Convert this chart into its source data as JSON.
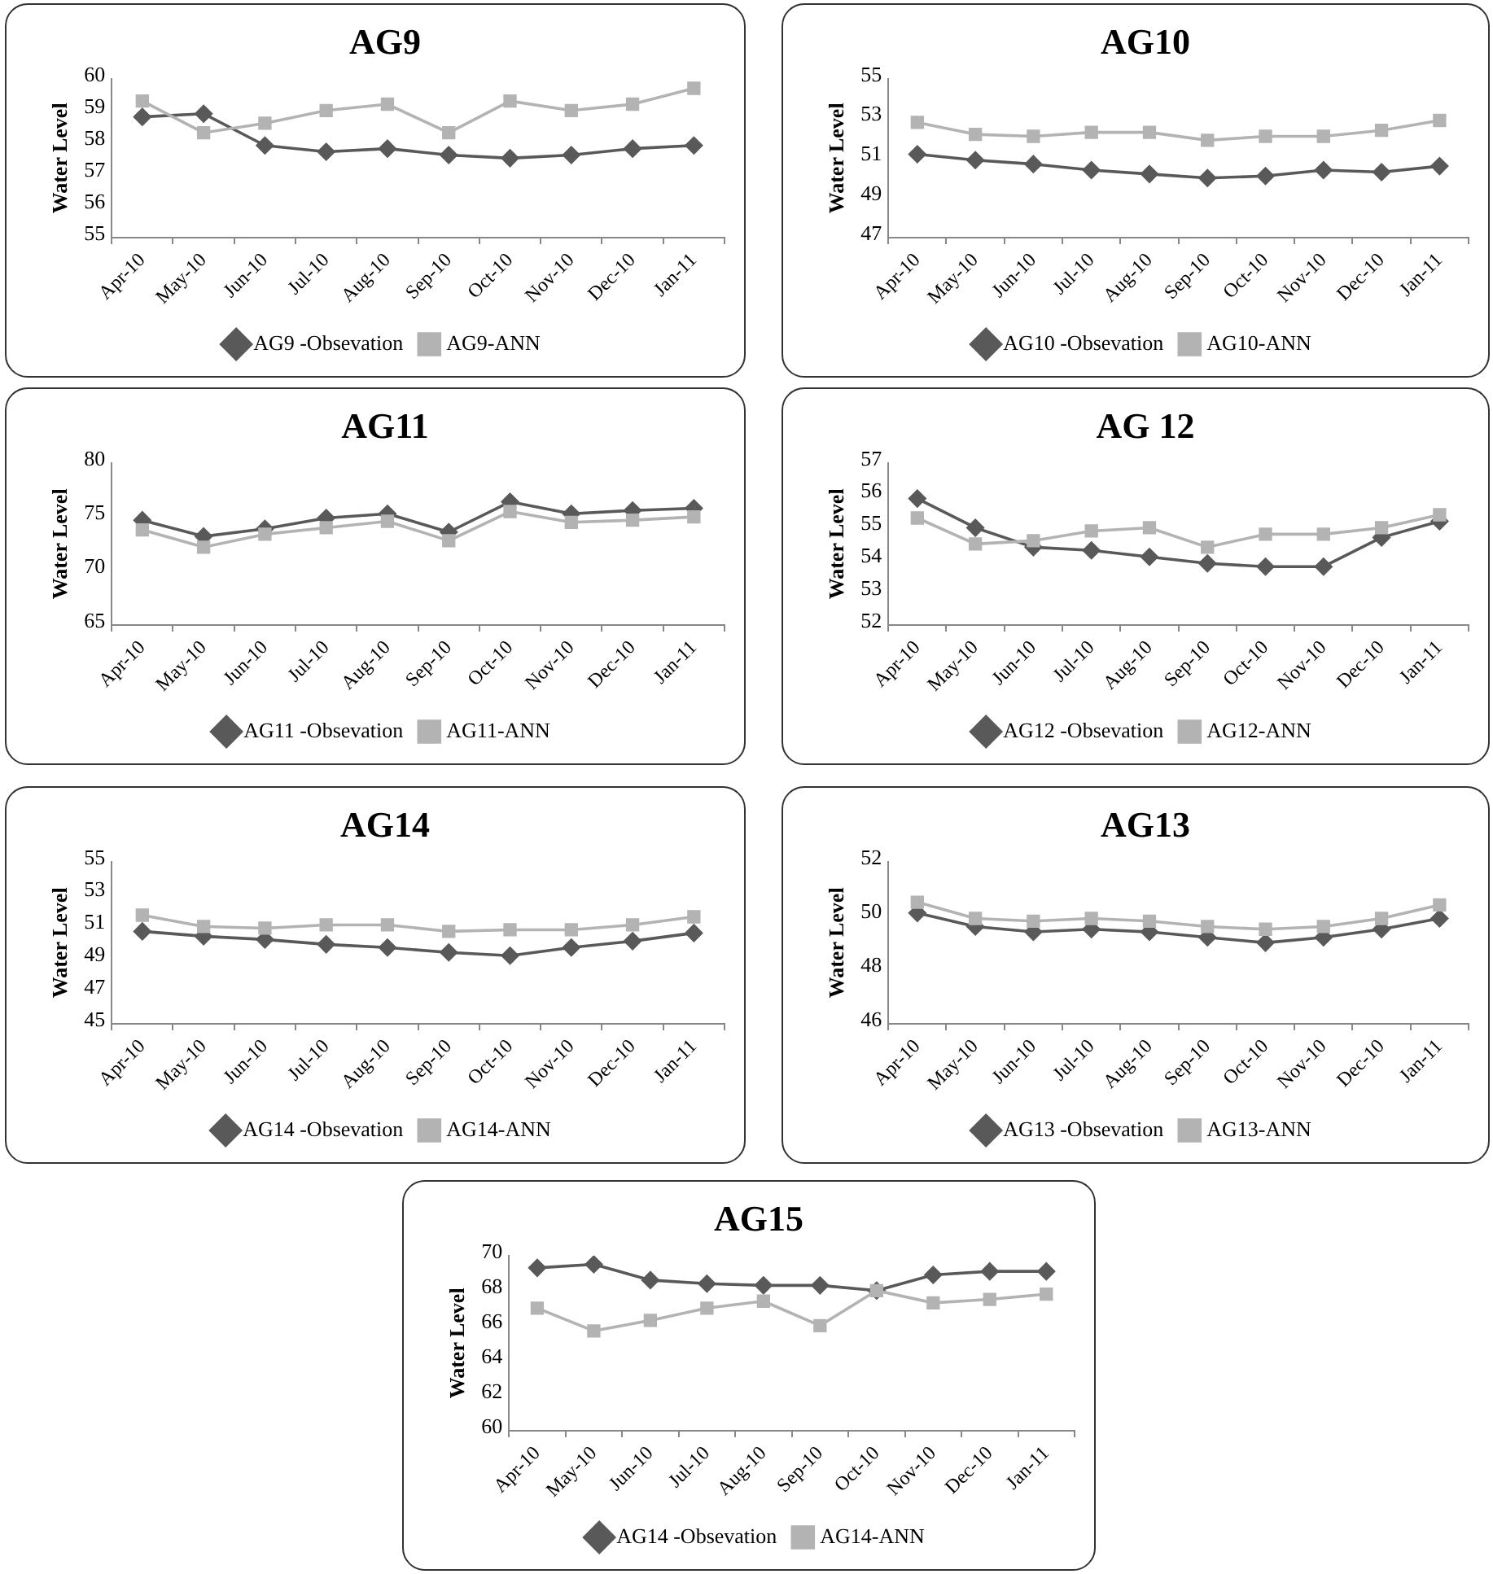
{
  "chart_data": [
    {
      "type": "line",
      "title": "AG9",
      "ylabel": "Water Level",
      "categories": [
        "Apr-10",
        "May-10",
        "Jun-10",
        "Jul-10",
        "Aug-10",
        "Sep-10",
        "Oct-10",
        "Nov-10",
        "Dec-10",
        "Jan-11"
      ],
      "ylim": [
        55,
        60
      ],
      "yticks": [
        55,
        56,
        57,
        58,
        59,
        60
      ],
      "grid": false,
      "legend": "bottom",
      "series": [
        {
          "name": "AG9 -Obsevation",
          "color": "#595959",
          "marker": "diamond",
          "values": [
            58.8,
            58.9,
            57.9,
            57.7,
            57.8,
            57.6,
            57.5,
            57.6,
            57.8,
            57.9
          ]
        },
        {
          "name": "AG9-ANN",
          "color": "#b3b3b3",
          "marker": "square",
          "values": [
            59.3,
            58.3,
            58.6,
            59.0,
            59.2,
            58.3,
            59.3,
            59.0,
            59.2,
            59.7
          ]
        }
      ]
    },
    {
      "type": "line",
      "title": "AG10",
      "ylabel": "Water Level",
      "categories": [
        "Apr-10",
        "May-10",
        "Jun-10",
        "Jul-10",
        "Aug-10",
        "Sep-10",
        "Oct-10",
        "Nov-10",
        "Dec-10",
        "Jan-11"
      ],
      "ylim": [
        47,
        55
      ],
      "yticks": [
        47,
        49,
        51,
        53,
        55
      ],
      "grid": false,
      "legend": "bottom",
      "series": [
        {
          "name": "AG10 -Obsevation",
          "color": "#595959",
          "marker": "diamond",
          "values": [
            51.2,
            50.9,
            50.7,
            50.4,
            50.2,
            50.0,
            50.1,
            50.4,
            50.3,
            50.6
          ]
        },
        {
          "name": "AG10-ANN",
          "color": "#b3b3b3",
          "marker": "square",
          "values": [
            52.8,
            52.2,
            52.1,
            52.3,
            52.3,
            51.9,
            52.1,
            52.1,
            52.4,
            52.9
          ]
        }
      ]
    },
    {
      "type": "line",
      "title": "AG11",
      "ylabel": "Water Level",
      "categories": [
        "Apr-10",
        "May-10",
        "Jun-10",
        "Jul-10",
        "Aug-10",
        "Sep-10",
        "Oct-10",
        "Nov-10",
        "Dec-10",
        "Jan-11"
      ],
      "ylim": [
        65,
        80
      ],
      "yticks": [
        65,
        70,
        75,
        80
      ],
      "grid": false,
      "legend": "bottom",
      "series": [
        {
          "name": "AG11 -Obsevation",
          "color": "#595959",
          "marker": "diamond",
          "values": [
            74.7,
            73.2,
            73.9,
            74.9,
            75.3,
            73.6,
            76.4,
            75.3,
            75.6,
            75.8
          ]
        },
        {
          "name": "AG11-ANN",
          "color": "#b3b3b3",
          "marker": "square",
          "values": [
            73.8,
            72.2,
            73.4,
            74.0,
            74.6,
            72.8,
            75.5,
            74.5,
            74.7,
            75.0
          ]
        }
      ]
    },
    {
      "type": "line",
      "title": "AG 12",
      "ylabel": "Water Level",
      "categories": [
        "Apr-10",
        "May-10",
        "Jun-10",
        "Jul-10",
        "Aug-10",
        "Sep-10",
        "Oct-10",
        "Nov-10",
        "Dec-10",
        "Jan-11"
      ],
      "ylim": [
        52,
        57
      ],
      "yticks": [
        52,
        53,
        54,
        55,
        56,
        57
      ],
      "grid": false,
      "legend": "bottom",
      "series": [
        {
          "name": "AG12 -Obsevation",
          "color": "#595959",
          "marker": "diamond",
          "values": [
            55.9,
            55.0,
            54.4,
            54.3,
            54.1,
            53.9,
            53.8,
            53.8,
            54.7,
            55.2
          ]
        },
        {
          "name": "AG12-ANN",
          "color": "#b3b3b3",
          "marker": "square",
          "values": [
            55.3,
            54.5,
            54.6,
            54.9,
            55.0,
            54.4,
            54.8,
            54.8,
            55.0,
            55.4
          ]
        }
      ]
    },
    {
      "type": "line",
      "title": "AG14",
      "ylabel": "Water Level",
      "categories": [
        "Apr-10",
        "May-10",
        "Jun-10",
        "Jul-10",
        "Aug-10",
        "Sep-10",
        "Oct-10",
        "Nov-10",
        "Dec-10",
        "Jan-11"
      ],
      "ylim": [
        45,
        55
      ],
      "yticks": [
        45,
        47,
        49,
        51,
        53,
        55
      ],
      "grid": false,
      "legend": "bottom",
      "series": [
        {
          "name": "AG14 -Obsevation",
          "color": "#595959",
          "marker": "diamond",
          "values": [
            50.7,
            50.4,
            50.2,
            49.9,
            49.7,
            49.4,
            49.2,
            49.7,
            50.1,
            50.6
          ]
        },
        {
          "name": "AG14-ANN",
          "color": "#b3b3b3",
          "marker": "square",
          "values": [
            51.7,
            51.0,
            50.9,
            51.1,
            51.1,
            50.7,
            50.8,
            50.8,
            51.1,
            51.6
          ]
        }
      ]
    },
    {
      "type": "line",
      "title": "AG13",
      "ylabel": "Water Level",
      "categories": [
        "Apr-10",
        "May-10",
        "Jun-10",
        "Jul-10",
        "Aug-10",
        "Sep-10",
        "Oct-10",
        "Nov-10",
        "Dec-10",
        "Jan-11"
      ],
      "ylim": [
        46,
        52
      ],
      "yticks": [
        46,
        48,
        50,
        52
      ],
      "grid": false,
      "legend": "bottom",
      "series": [
        {
          "name": "AG13 -Obsevation",
          "color": "#595959",
          "marker": "diamond",
          "values": [
            50.1,
            49.6,
            49.4,
            49.5,
            49.4,
            49.2,
            49.0,
            49.2,
            49.5,
            49.9
          ]
        },
        {
          "name": "AG13-ANN",
          "color": "#b3b3b3",
          "marker": "square",
          "values": [
            50.5,
            49.9,
            49.8,
            49.9,
            49.8,
            49.6,
            49.5,
            49.6,
            49.9,
            50.4
          ]
        }
      ]
    },
    {
      "type": "line",
      "title": "AG15",
      "ylabel": "Water Level",
      "categories": [
        "Apr-10",
        "May-10",
        "Jun-10",
        "Jul-10",
        "Aug-10",
        "Sep-10",
        "Oct-10",
        "Nov-10",
        "Dec-10",
        "Jan-11"
      ],
      "ylim": [
        60,
        70
      ],
      "yticks": [
        60,
        62,
        64,
        66,
        68,
        70
      ],
      "grid": false,
      "legend": "bottom",
      "series": [
        {
          "name": "AG14 -Obsevation",
          "color": "#595959",
          "marker": "diamond",
          "values": [
            69.3,
            69.5,
            68.6,
            68.4,
            68.3,
            68.3,
            68.0,
            68.9,
            69.1,
            69.1
          ]
        },
        {
          "name": "AG14-ANN",
          "color": "#b3b3b3",
          "marker": "square",
          "values": [
            67.0,
            65.7,
            66.3,
            67.0,
            67.4,
            66.0,
            68.0,
            67.3,
            67.5,
            67.8
          ]
        }
      ]
    }
  ]
}
